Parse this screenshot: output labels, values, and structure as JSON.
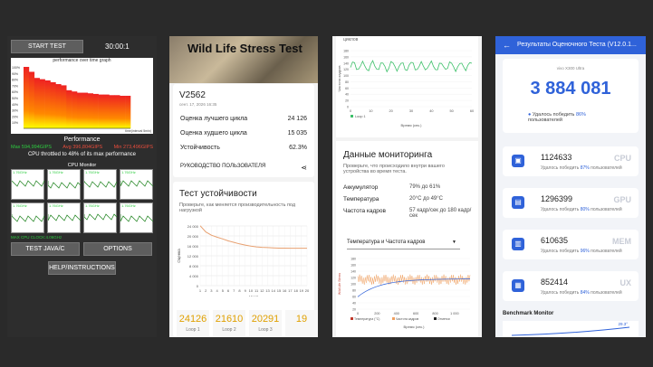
{
  "p1": {
    "start": "START TEST",
    "timer": "30:00:1",
    "graph_title": "performance over time graph",
    "performance": "Performance",
    "max": "Max 594,994GIPS",
    "avg": "Avg 396,804GIPS",
    "min": "Min 273,496GIPS",
    "throttled": "CPU throttled to 48% of its max performance",
    "cpu_monitor": "CPU Monitor",
    "freq": "1.76GHz",
    "max_clock": "MAX CPU CLOCK:4.06GHz",
    "java": "TEST JAVA/C",
    "options": "OPTIONS",
    "help": "HELP/INSTRUCTIONS",
    "time_label": "time(interval 5min)",
    "y_ticks": [
      "100%",
      "90%",
      "80%",
      "70%",
      "60%",
      "50%",
      "40%",
      "30%",
      "20%",
      "10%"
    ],
    "chart_data": {
      "type": "bar",
      "title": "performance over time graph",
      "xlabel": "time(interval 5min)",
      "values": [
        100,
        92,
        82,
        80,
        78,
        75,
        72,
        70,
        62,
        60,
        58,
        58,
        57,
        56,
        55,
        55,
        54,
        54,
        53,
        53
      ]
    }
  },
  "p2": {
    "title": "Wild Life Stress Test",
    "device": "V2562",
    "date": "сент. 17, 2026 16:35",
    "best_label": "Оценка лучшего цикла",
    "best": "24 126",
    "worst_label": "Оценка худшего цикла",
    "worst": "15 035",
    "stab_label": "Устойчивость",
    "stab": "62.3%",
    "guide": "РУКОВОДСТВО ПОЛЬЗОВАТЕЛЯ",
    "stab_title": "Тест устойчивости",
    "stab_desc": "Проверьте, как меняется производительность под нагрузкой",
    "y_axis": "Оценка",
    "x_axis": "Цикл",
    "y_ticks": [
      "24 000",
      "20 000",
      "16 000",
      "12 000",
      "8 000",
      "4 000",
      "0"
    ],
    "chart_data": {
      "type": "line",
      "x": [
        1,
        2,
        3,
        4,
        5,
        6,
        7,
        8,
        9,
        10,
        11,
        12,
        13,
        14,
        15,
        16,
        17,
        18,
        19,
        20
      ],
      "values": [
        24126,
        21610,
        20291,
        19500,
        18800,
        18000,
        17400,
        16800,
        16300,
        15900,
        15600,
        15400,
        15300,
        15200,
        15100,
        15100,
        15050,
        15035,
        15040,
        15035
      ],
      "ylim": [
        0,
        24000
      ],
      "xlabel": "Цикл",
      "ylabel": "Оценка"
    },
    "loops": [
      {
        "score": "24126",
        "label": "Loop 1"
      },
      {
        "score": "21610",
        "label": "Loop 2"
      },
      {
        "score": "20291",
        "label": "Loop 3"
      },
      {
        "score": "19",
        "label": ""
      }
    ]
  },
  "p3": {
    "top_label": "циклов",
    "y_axis": "Частота кадров",
    "legend": "Loop 1",
    "x_axis": "Время (сек.)",
    "x_ticks": [
      "0",
      "10",
      "20",
      "30",
      "40",
      "50",
      "60"
    ],
    "y_ticks": [
      "180",
      "160",
      "140",
      "120",
      "100",
      "80",
      "60",
      "40",
      "20",
      "0"
    ],
    "mon_title": "Данные мониторинга",
    "mon_desc": "Проверьте, что происходило внутри вашего устройства во время теста.",
    "rows": [
      {
        "k": "Аккумулятор",
        "v": "79% до 61%"
      },
      {
        "k": "Температура",
        "v": "20°C до 49°C"
      },
      {
        "k": "Частота кадров",
        "v": "57 кадр/сек до 180 кадр/сек"
      }
    ],
    "select": "Температура и Частота кадров",
    "y2_axis": "Wild Life Stress",
    "y2_ticks": [
      "180",
      "160",
      "140",
      "120",
      "100",
      "80",
      "60",
      "40",
      "20"
    ],
    "x2_ticks": [
      "0",
      "200",
      "400",
      "600",
      "800",
      "1 000"
    ],
    "legend2": [
      "Температура (°C)",
      "Частота кадров",
      "Отметки"
    ],
    "x2_axis": "Время (сек.)"
  },
  "p4": {
    "header": "Результаты Оценочного Теста (V12.0.1...",
    "device": "vivo X300 Ultra",
    "score": "3 884 081",
    "beat": "Удалось победить",
    "beat_pct": "86%",
    "beat_tail": "пользователей",
    "metrics": [
      {
        "val": "1124633",
        "pct": "87%",
        "lab": "CPU"
      },
      {
        "val": "1296399",
        "pct": "80%",
        "lab": "GPU"
      },
      {
        "val": "610635",
        "pct": "96%",
        "lab": "MEM"
      },
      {
        "val": "852414",
        "pct": "84%",
        "lab": "UX"
      }
    ],
    "metric_sub": "Удалось победить",
    "metric_tail": "пользователей",
    "monitor": "Benchmark Monitor",
    "temp": "29.3°"
  }
}
